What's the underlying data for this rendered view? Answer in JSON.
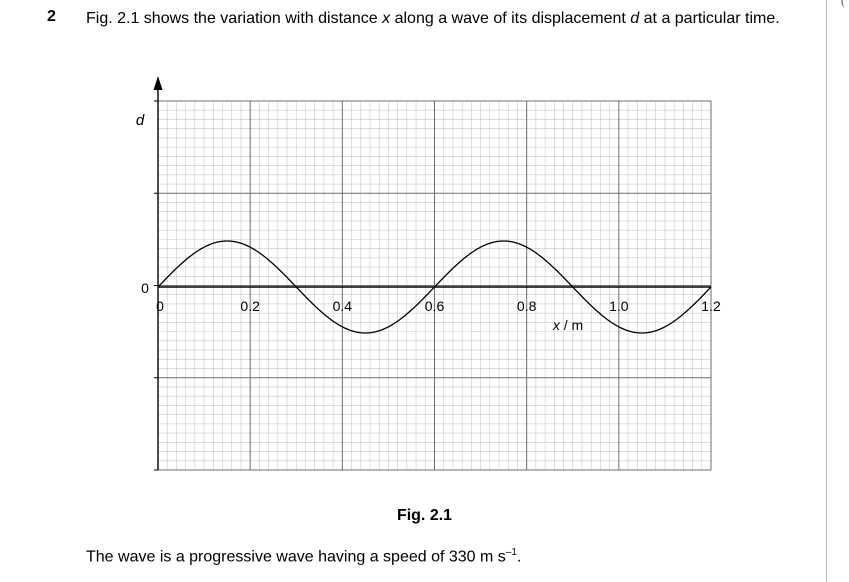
{
  "question": {
    "number": "2",
    "text_parts": [
      "Fig. 2.1 shows the variation with distance ",
      "x",
      " along a wave of its displacement ",
      "d",
      " at a particular time."
    ]
  },
  "chart_data": {
    "type": "line",
    "xlabel": "x / m",
    "ylabel": "d",
    "xlim": [
      0,
      1.2
    ],
    "x_ticks": [
      "0",
      "0.2",
      "0.4",
      "0.6",
      "0.8",
      "1.0",
      "1.2"
    ],
    "y_ticks": [
      "0"
    ],
    "grid": true,
    "series": [
      {
        "x": [
          0,
          0.05,
          0.1,
          0.15,
          0.2,
          0.25,
          0.3,
          0.35,
          0.4,
          0.45,
          0.5,
          0.55,
          0.6,
          0.65,
          0.7,
          0.75,
          0.8,
          0.85,
          0.9,
          0.95,
          1.0,
          1.05,
          1.1,
          1.15,
          1.2
        ],
        "y": [
          0,
          0.5,
          0.866,
          1,
          0.866,
          0.5,
          0,
          -0.5,
          -0.866,
          -1,
          -0.866,
          -0.5,
          0,
          0.5,
          0.866,
          1,
          0.866,
          0.5,
          0,
          -0.5,
          -0.866,
          -1,
          -0.866,
          -0.5,
          0
        ]
      }
    ],
    "wave": {
      "wavelength_m": 0.6,
      "x_start_m": 0,
      "x_end_m": 1.2
    }
  },
  "caption": "Fig. 2.1",
  "footer": {
    "text": "The wave is a progressive wave having a speed of 330 m s",
    "sup": "–1",
    "end": "."
  },
  "colors": {
    "grid_minor": "#c8c8c8",
    "grid_major": "#6e6e6e",
    "axis": "#000000",
    "curve": "#000000"
  }
}
